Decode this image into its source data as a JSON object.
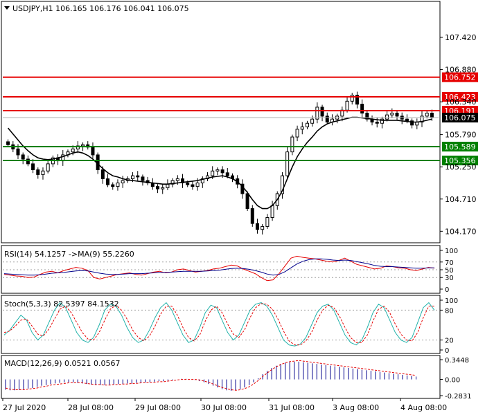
{
  "chart_data": [
    {
      "type": "candlestick",
      "symbol_line": "USDJPY,H1  106.165 106.176 106.041 106.075",
      "ylim": [
        104.0,
        108.0
      ],
      "y_ticks": [
        "107.420",
        "106.880",
        "106.340",
        "105.790",
        "105.250",
        "104.710",
        "104.170"
      ],
      "current_price": "106.075",
      "levels": [
        {
          "value": 106.752,
          "label": "106.752",
          "color": "#e60000"
        },
        {
          "value": 106.423,
          "label": "106.423",
          "color": "#e60000"
        },
        {
          "value": 106.191,
          "label": "106.191",
          "color": "#e60000"
        },
        {
          "value": 105.589,
          "label": "105.589",
          "color": "#008000"
        },
        {
          "value": 105.356,
          "label": "105.356",
          "color": "#008000"
        }
      ],
      "x_ticks": [
        "27 Jul 2020",
        "28 Jul 08:00",
        "29 Jul 08:00",
        "30 Jul 08:00",
        "31 Jul 08:00",
        "3 Aug 08:00",
        "4 Aug 08:00"
      ],
      "close_series": [
        105.62,
        105.55,
        105.45,
        105.38,
        105.3,
        105.2,
        105.12,
        105.18,
        105.3,
        105.4,
        105.35,
        105.45,
        105.5,
        105.55,
        105.6,
        105.62,
        105.58,
        105.45,
        105.2,
        105.05,
        104.95,
        104.92,
        104.98,
        105.02,
        105.05,
        105.1,
        105.08,
        105.02,
        104.98,
        104.92,
        104.88,
        104.9,
        104.96,
        105.02,
        105.05,
        104.98,
        104.95,
        104.92,
        104.98,
        105.05,
        105.1,
        105.18,
        105.2,
        105.15,
        105.1,
        105.05,
        104.96,
        104.8,
        104.55,
        104.3,
        104.2,
        104.25,
        104.4,
        104.6,
        104.8,
        105.1,
        105.5,
        105.75,
        105.88,
        105.92,
        105.98,
        106.05,
        106.25,
        106.1,
        106.0,
        106.05,
        106.1,
        106.2,
        106.35,
        106.45,
        106.3,
        106.15,
        106.05,
        106.0,
        105.98,
        106.05,
        106.12,
        106.15,
        106.1,
        106.05,
        106.02,
        105.95,
        106.0,
        106.1,
        106.15,
        106.075
      ],
      "ma_series": [
        105.9,
        105.8,
        105.7,
        105.6,
        105.52,
        105.45,
        105.4,
        105.38,
        105.37,
        105.38,
        105.4,
        105.42,
        105.45,
        105.48,
        105.5,
        105.48,
        105.44,
        105.38,
        105.3,
        105.22,
        105.15,
        105.1,
        105.08,
        105.05,
        105.03,
        105.02,
        105.01,
        105.0,
        104.99,
        104.98,
        104.97,
        104.96,
        104.96,
        104.97,
        104.98,
        104.99,
        105.0,
        105.01,
        105.02,
        105.04,
        105.06,
        105.08,
        105.09,
        105.1,
        105.08,
        105.05,
        105.0,
        104.92,
        104.82,
        104.7,
        104.6,
        104.55,
        104.55,
        104.6,
        104.7,
        104.85,
        105.05,
        105.25,
        105.42,
        105.55,
        105.66,
        105.75,
        105.85,
        105.92,
        105.97,
        106.0,
        106.02,
        106.04,
        106.06,
        106.08,
        106.08,
        106.07,
        106.06,
        106.05,
        106.04,
        106.03,
        106.03,
        106.03,
        106.03,
        106.02,
        106.01,
        106.0,
        106.0,
        106.01,
        106.03,
        106.05
      ]
    },
    {
      "type": "line",
      "title": "RSI(14) 54.1257  ->MA(9) 55.2260",
      "ylim": [
        0,
        100
      ],
      "y_ticks": [
        "100",
        "70",
        "50",
        "30",
        "0"
      ],
      "levels": [
        70,
        50,
        30
      ],
      "series": [
        {
          "color": "#e60000",
          "values": [
            38,
            36,
            34,
            33,
            30,
            31,
            38,
            44,
            46,
            42,
            48,
            52,
            56,
            54,
            48,
            30,
            26,
            30,
            34,
            38,
            40,
            42,
            38,
            36,
            40,
            44,
            46,
            42,
            44,
            50,
            52,
            48,
            44,
            46,
            48,
            52,
            54,
            58,
            62,
            60,
            52,
            46,
            40,
            30,
            22,
            24,
            40,
            60,
            80,
            85,
            82,
            80,
            78,
            75,
            72,
            70,
            74,
            80,
            72,
            64,
            60,
            56,
            52,
            54,
            60,
            58,
            55,
            54,
            50,
            48,
            52,
            56,
            54
          ]
        },
        {
          "color": "#00008b",
          "values": [
            40,
            39,
            38,
            37,
            36,
            36,
            37,
            39,
            41,
            42,
            43,
            45,
            47,
            48,
            47,
            44,
            41,
            39,
            38,
            38,
            39,
            40,
            40,
            40,
            41,
            42,
            43,
            43,
            44,
            45,
            46,
            46,
            46,
            46,
            47,
            48,
            49,
            51,
            53,
            54,
            53,
            51,
            48,
            44,
            39,
            36,
            38,
            45,
            55,
            65,
            72,
            76,
            78,
            78,
            77,
            75,
            74,
            75,
            74,
            71,
            68,
            65,
            61,
            59,
            58,
            58,
            57,
            56,
            55,
            54,
            54,
            55,
            55
          ]
        }
      ]
    },
    {
      "type": "line",
      "title": "Stoch(5,3,3) 82.5397 84.1532",
      "ylim": [
        0,
        100
      ],
      "y_ticks": [
        "100",
        "80",
        "20",
        "0"
      ],
      "levels": [
        80,
        20
      ],
      "series": [
        {
          "color": "#20b2aa",
          "values": [
            30,
            40,
            55,
            70,
            60,
            35,
            20,
            30,
            55,
            80,
            95,
            85,
            60,
            35,
            20,
            15,
            25,
            50,
            80,
            92,
            88,
            70,
            45,
            25,
            15,
            20,
            40,
            65,
            85,
            95,
            80,
            55,
            30,
            15,
            20,
            45,
            75,
            90,
            85,
            60,
            35,
            20,
            30,
            55,
            80,
            92,
            95,
            88,
            70,
            45,
            20,
            10,
            8,
            12,
            25,
            50,
            75,
            88,
            92,
            80,
            55,
            30,
            15,
            10,
            20,
            45,
            75,
            92,
            85,
            60,
            35,
            20,
            15,
            25,
            55,
            85,
            95,
            80
          ]
        },
        {
          "color": "#e60000",
          "values": [
            35,
            38,
            48,
            60,
            62,
            48,
            32,
            28,
            42,
            62,
            82,
            88,
            75,
            55,
            35,
            22,
            20,
            35,
            60,
            82,
            90,
            80,
            62,
            40,
            25,
            18,
            28,
            48,
            72,
            88,
            88,
            70,
            45,
            25,
            18,
            30,
            58,
            80,
            88,
            75,
            52,
            32,
            25,
            40,
            65,
            85,
            93,
            92,
            82,
            62,
            38,
            18,
            10,
            10,
            18,
            35,
            60,
            80,
            90,
            85,
            68,
            45,
            25,
            15,
            15,
            30,
            58,
            82,
            88,
            75,
            52,
            32,
            20,
            18,
            35,
            65,
            88,
            88
          ]
        }
      ]
    },
    {
      "type": "bar",
      "title": "MACD(12,26,9) 0.0521 0.0567",
      "ylim": [
        -0.2831,
        0.3448
      ],
      "y_ticks": [
        "0.3448",
        "0.00",
        "-0.2831"
      ],
      "values": [
        -0.18,
        -0.19,
        -0.19,
        -0.18,
        -0.17,
        -0.16,
        -0.15,
        -0.13,
        -0.11,
        -0.1,
        -0.08,
        -0.07,
        -0.06,
        -0.05,
        -0.05,
        -0.05,
        -0.06,
        -0.07,
        -0.08,
        -0.09,
        -0.1,
        -0.1,
        -0.1,
        -0.09,
        -0.09,
        -0.08,
        -0.08,
        -0.07,
        -0.07,
        -0.06,
        -0.06,
        -0.05,
        -0.05,
        -0.04,
        -0.03,
        -0.03,
        -0.02,
        -0.01,
        0.0,
        0.01,
        0.01,
        0.0,
        -0.01,
        -0.03,
        -0.05,
        -0.08,
        -0.11,
        -0.14,
        -0.17,
        -0.19,
        -0.2,
        -0.19,
        -0.17,
        -0.14,
        -0.1,
        -0.05,
        0.02,
        0.09,
        0.15,
        0.2,
        0.24,
        0.27,
        0.29,
        0.3,
        0.31,
        0.31,
        0.3,
        0.29,
        0.28,
        0.27,
        0.26,
        0.25,
        0.24,
        0.23,
        0.22,
        0.21,
        0.2,
        0.19,
        0.18,
        0.17,
        0.16,
        0.15,
        0.14,
        0.13,
        0.12,
        0.11,
        0.1,
        0.09,
        0.08,
        0.07,
        0.06,
        0.05
      ],
      "signal": [
        -0.15,
        -0.17,
        -0.18,
        -0.18,
        -0.18,
        -0.17,
        -0.16,
        -0.15,
        -0.13,
        -0.12,
        -0.1,
        -0.09,
        -0.08,
        -0.07,
        -0.06,
        -0.06,
        -0.06,
        -0.06,
        -0.07,
        -0.08,
        -0.09,
        -0.09,
        -0.1,
        -0.1,
        -0.09,
        -0.09,
        -0.08,
        -0.08,
        -0.07,
        -0.07,
        -0.06,
        -0.06,
        -0.05,
        -0.05,
        -0.04,
        -0.04,
        -0.03,
        -0.02,
        -0.01,
        0.0,
        0.0,
        0.0,
        0.0,
        -0.01,
        -0.03,
        -0.05,
        -0.08,
        -0.11,
        -0.14,
        -0.16,
        -0.18,
        -0.19,
        -0.18,
        -0.16,
        -0.13,
        -0.08,
        -0.02,
        0.05,
        0.11,
        0.17,
        0.22,
        0.26,
        0.29,
        0.31,
        0.32,
        0.33,
        0.32,
        0.31,
        0.3,
        0.29,
        0.28,
        0.27,
        0.26,
        0.25,
        0.24,
        0.23,
        0.22,
        0.21,
        0.2,
        0.19,
        0.18,
        0.17,
        0.16,
        0.15,
        0.14,
        0.13,
        0.12,
        0.11,
        0.1,
        0.09,
        0.08,
        0.07
      ]
    }
  ]
}
